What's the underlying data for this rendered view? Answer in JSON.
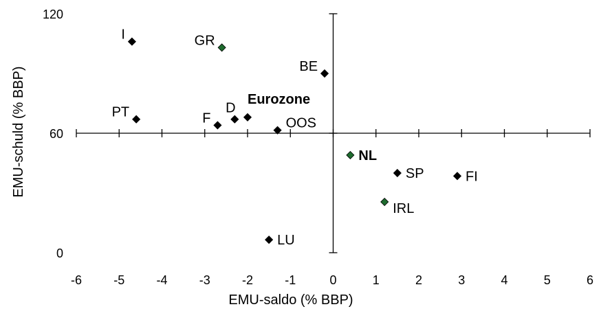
{
  "chart_data": {
    "type": "scatter",
    "xlabel": "EMU-saldo (% BBP)",
    "ylabel": "EMU-schuld (% BBP)",
    "xlim": [
      -6,
      6
    ],
    "ylim": [
      0,
      120
    ],
    "x_ticks": [
      -6,
      -5,
      -4,
      -3,
      -2,
      -1,
      0,
      1,
      2,
      3,
      4,
      5,
      6
    ],
    "y_ticks": [
      0,
      60,
      120
    ],
    "grid": false,
    "points": [
      {
        "label": "I",
        "x": -4.7,
        "y": 106,
        "color": "#000000",
        "bold": false,
        "label_pos": "left"
      },
      {
        "label": "GR",
        "x": -2.6,
        "y": 103,
        "color": "#1e6b2e",
        "bold": false,
        "label_pos": "left"
      },
      {
        "label": "BE",
        "x": -0.2,
        "y": 90,
        "color": "#000000",
        "bold": false,
        "label_pos": "left"
      },
      {
        "label": "PT",
        "x": -4.6,
        "y": 67,
        "color": "#000000",
        "bold": false,
        "label_pos": "left"
      },
      {
        "label": "F",
        "x": -2.7,
        "y": 64,
        "color": "#000000",
        "bold": false,
        "label_pos": "left"
      },
      {
        "label": "D",
        "x": -2.3,
        "y": 67,
        "color": "#000000",
        "bold": false,
        "label_pos": "above"
      },
      {
        "label": "Eurozone",
        "x": -2.0,
        "y": 68,
        "color": "#000000",
        "bold": true,
        "label_pos": "above-right"
      },
      {
        "label": "OOS",
        "x": -1.3,
        "y": 61.5,
        "color": "#000000",
        "bold": false,
        "label_pos": "right-above"
      },
      {
        "label": "NL",
        "x": 0.4,
        "y": 49,
        "color": "#1e6b2e",
        "bold": true,
        "label_pos": "right"
      },
      {
        "label": "SP",
        "x": 1.5,
        "y": 40,
        "color": "#000000",
        "bold": false,
        "label_pos": "right"
      },
      {
        "label": "FI",
        "x": 2.9,
        "y": 38.5,
        "color": "#000000",
        "bold": false,
        "label_pos": "right"
      },
      {
        "label": "IRL",
        "x": 1.2,
        "y": 25.5,
        "color": "#1e6b2e",
        "bold": false,
        "label_pos": "right-below"
      },
      {
        "label": "LU",
        "x": -1.5,
        "y": 6.5,
        "color": "#000000",
        "bold": false,
        "label_pos": "right"
      }
    ]
  }
}
